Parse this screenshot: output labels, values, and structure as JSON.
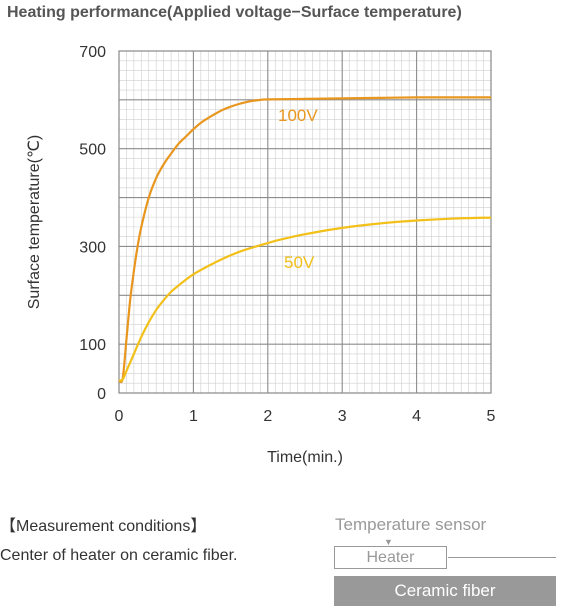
{
  "chart_data": {
    "type": "line",
    "title": "Heating performance(Applied voltage−Surface temperature)",
    "xlabel": "Time(min.)",
    "ylabel": "Surface temperature(℃)",
    "xlim": [
      0,
      5
    ],
    "ylim": [
      0,
      700
    ],
    "x_ticks": [
      "0",
      "1",
      "2",
      "3",
      "4",
      "5"
    ],
    "y_ticks": [
      "0",
      "100",
      "300",
      "500",
      "700"
    ],
    "grid": true,
    "series": [
      {
        "name": "100V",
        "color": "#e8961e",
        "x": [
          0,
          0.05,
          0.1,
          0.15,
          0.2,
          0.25,
          0.3,
          0.4,
          0.5,
          0.6,
          0.7,
          0.8,
          0.9,
          1.0,
          1.1,
          1.2,
          1.3,
          1.4,
          1.5,
          1.6,
          1.7,
          1.8,
          1.9,
          2.0,
          2.5,
          3.0,
          3.5,
          4.0,
          4.5,
          5.0
        ],
        "y": [
          25,
          30,
          110,
          190,
          250,
          300,
          340,
          400,
          440,
          468,
          490,
          510,
          525,
          540,
          553,
          563,
          572,
          580,
          586,
          591,
          595,
          598,
          600,
          601,
          602,
          603,
          604,
          605,
          605,
          605
        ]
      },
      {
        "name": "50V",
        "color": "#f2c019",
        "x": [
          0,
          0.05,
          0.1,
          0.2,
          0.3,
          0.4,
          0.5,
          0.6,
          0.7,
          0.8,
          0.9,
          1.0,
          1.2,
          1.4,
          1.6,
          1.8,
          2.0,
          2.2,
          2.5,
          3.0,
          3.5,
          4.0,
          4.5,
          5.0
        ],
        "y": [
          25,
          28,
          45,
          80,
          115,
          145,
          170,
          190,
          207,
          220,
          232,
          243,
          260,
          275,
          288,
          298,
          307,
          315,
          325,
          338,
          347,
          353,
          357,
          359
        ]
      }
    ]
  },
  "conditions": {
    "heading": "【Measurement conditions】",
    "description": "Center of heater on ceramic fiber.",
    "sensor_label": "Temperature sensor",
    "heater_label": "Heater",
    "fiber_label": "Ceramic fiber",
    "sensor_color": "#999999",
    "fiber_color": "#999999"
  }
}
